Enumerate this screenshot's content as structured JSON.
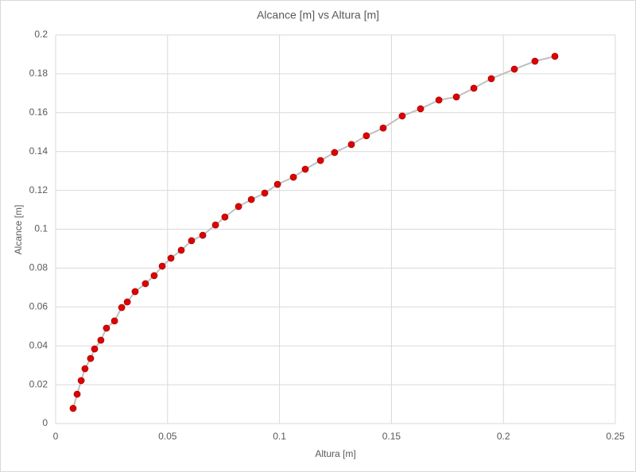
{
  "chart_data": {
    "type": "scatter",
    "title": "Alcance [m] vs Altura [m]",
    "x_label": "Altura [m]",
    "y_label": "Alcance [m]",
    "x": [
      0.0078,
      0.0096,
      0.0114,
      0.0131,
      0.0156,
      0.0174,
      0.0202,
      0.0227,
      0.0263,
      0.0295,
      0.032,
      0.0355,
      0.0401,
      0.044,
      0.0476,
      0.0515,
      0.0561,
      0.0607,
      0.0657,
      0.0714,
      0.0756,
      0.0817,
      0.0874,
      0.0934,
      0.0991,
      0.1062,
      0.1115,
      0.1183,
      0.1246,
      0.1321,
      0.1388,
      0.1463,
      0.1548,
      0.163,
      0.1712,
      0.179,
      0.1868,
      0.1946,
      0.2049,
      0.2141,
      0.223
    ],
    "values": [
      0.0078,
      0.0151,
      0.0221,
      0.0282,
      0.0335,
      0.0384,
      0.0429,
      0.0491,
      0.0528,
      0.0597,
      0.0626,
      0.0679,
      0.072,
      0.0761,
      0.081,
      0.0851,
      0.0892,
      0.0941,
      0.0969,
      0.1022,
      0.1063,
      0.1117,
      0.1153,
      0.1186,
      0.1231,
      0.1268,
      0.1309,
      0.1354,
      0.1395,
      0.1436,
      0.1481,
      0.1521,
      0.1583,
      0.162,
      0.1665,
      0.1681,
      0.1726,
      0.1775,
      0.1824,
      0.1865,
      0.189
    ],
    "color": "#e00000",
    "line_color": "#bfbfbf",
    "xlim": [
      0,
      0.25
    ],
    "ylim": [
      0,
      0.2
    ],
    "xticks": [
      0,
      0.05,
      0.1,
      0.15,
      0.2,
      0.25
    ],
    "yticks": [
      0,
      0.02,
      0.04,
      0.06,
      0.08,
      0.1,
      0.12,
      0.14,
      0.16,
      0.18,
      0.2
    ],
    "grid": true
  }
}
